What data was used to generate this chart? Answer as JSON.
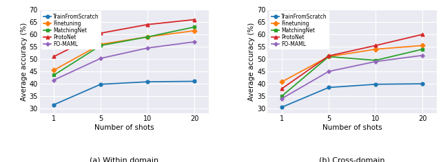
{
  "shots": [
    1,
    5,
    10,
    20
  ],
  "within_domain": {
    "TrainFromScratch": [
      31.5,
      39.8,
      40.8,
      41.0
    ],
    "Finetuning": [
      45.5,
      56.0,
      59.0,
      61.5
    ],
    "MatchingNet": [
      43.5,
      55.5,
      59.0,
      63.0
    ],
    "ProtoNet": [
      51.0,
      60.5,
      64.0,
      66.0
    ],
    "FO-MAML": [
      41.5,
      50.3,
      54.5,
      57.0
    ]
  },
  "cross_domain": {
    "TrainFromScratch": [
      30.5,
      38.5,
      39.8,
      40.0
    ],
    "Finetuning": [
      40.8,
      51.0,
      54.0,
      55.5
    ],
    "MatchingNet": [
      35.0,
      51.0,
      49.5,
      54.0
    ],
    "ProtoNet": [
      38.0,
      51.3,
      55.5,
      60.0
    ],
    "FO-MAML": [
      34.0,
      45.0,
      49.0,
      51.5
    ]
  },
  "colors": {
    "TrainFromScratch": "#1f77b4",
    "Finetuning": "#ff7f0e",
    "MatchingNet": "#2ca02c",
    "ProtoNet": "#d62728",
    "FO-MAML": "#9467bd"
  },
  "markers": {
    "TrainFromScratch": "o",
    "Finetuning": "D",
    "MatchingNet": "s",
    "ProtoNet": "^",
    "FO-MAML": "P"
  },
  "ylim": [
    28,
    70
  ],
  "yticks": [
    30,
    35,
    40,
    45,
    50,
    55,
    60,
    65,
    70
  ],
  "xlabel": "Number of shots",
  "ylabel": "Average accuracy (%)",
  "label_a": "(a) Within domain",
  "label_b": "(b) Cross-domain",
  "bg_color": "#eaeaf2",
  "grid_color": "white",
  "legend_order": [
    "TrainFromScratch",
    "Finetuning",
    "MatchingNet",
    "ProtoNet",
    "FO-MAML"
  ]
}
